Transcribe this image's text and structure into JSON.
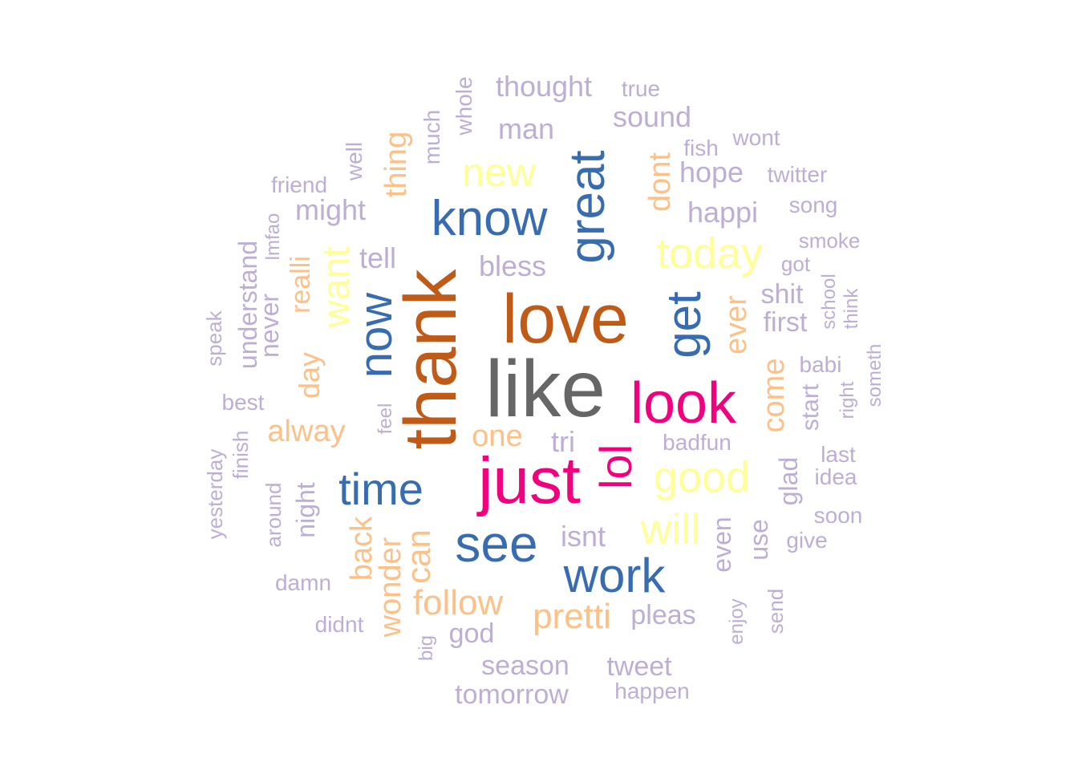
{
  "palette": {
    "tier1": "#666666",
    "tier2": "#bf5b17",
    "tier3": "#f0027f",
    "tier4": "#386cb0",
    "tier5": "#ffff99",
    "tier6": "#fdc086",
    "tier7": "#beaed4"
  },
  "words": [
    {
      "text": "like",
      "color": "tier1"
    },
    {
      "text": "thank",
      "color": "tier2"
    },
    {
      "text": "love",
      "color": "tier2"
    },
    {
      "text": "just",
      "color": "tier3"
    },
    {
      "text": "look",
      "color": "tier3"
    },
    {
      "text": "lol",
      "color": "tier3"
    },
    {
      "text": "know",
      "color": "tier4"
    },
    {
      "text": "great",
      "color": "tier4"
    },
    {
      "text": "get",
      "color": "tier4"
    },
    {
      "text": "now",
      "color": "tier4"
    },
    {
      "text": "time",
      "color": "tier4"
    },
    {
      "text": "see",
      "color": "tier4"
    },
    {
      "text": "work",
      "color": "tier4"
    },
    {
      "text": "new",
      "color": "tier5"
    },
    {
      "text": "today",
      "color": "tier5"
    },
    {
      "text": "want",
      "color": "tier5"
    },
    {
      "text": "good",
      "color": "tier5"
    },
    {
      "text": "will",
      "color": "tier5"
    },
    {
      "text": "thing",
      "color": "tier6"
    },
    {
      "text": "dont",
      "color": "tier6"
    },
    {
      "text": "realli",
      "color": "tier6"
    },
    {
      "text": "day",
      "color": "tier6"
    },
    {
      "text": "alway",
      "color": "tier6"
    },
    {
      "text": "one",
      "color": "tier6"
    },
    {
      "text": "ever",
      "color": "tier6"
    },
    {
      "text": "come",
      "color": "tier6"
    },
    {
      "text": "back",
      "color": "tier6"
    },
    {
      "text": "can",
      "color": "tier6"
    },
    {
      "text": "follow",
      "color": "tier6"
    },
    {
      "text": "wonder",
      "color": "tier6"
    },
    {
      "text": "pretti",
      "color": "tier6"
    },
    {
      "text": "thought",
      "color": "tier7"
    },
    {
      "text": "true",
      "color": "tier7"
    },
    {
      "text": "whole",
      "color": "tier7"
    },
    {
      "text": "much",
      "color": "tier7"
    },
    {
      "text": "man",
      "color": "tier7"
    },
    {
      "text": "sound",
      "color": "tier7"
    },
    {
      "text": "wont",
      "color": "tier7"
    },
    {
      "text": "fish",
      "color": "tier7"
    },
    {
      "text": "well",
      "color": "tier7"
    },
    {
      "text": "friend",
      "color": "tier7"
    },
    {
      "text": "hope",
      "color": "tier7"
    },
    {
      "text": "twitter",
      "color": "tier7"
    },
    {
      "text": "might",
      "color": "tier7"
    },
    {
      "text": "happi",
      "color": "tier7"
    },
    {
      "text": "song",
      "color": "tier7"
    },
    {
      "text": "lmfao",
      "color": "tier7"
    },
    {
      "text": "understand",
      "color": "tier7"
    },
    {
      "text": "smoke",
      "color": "tier7"
    },
    {
      "text": "tell",
      "color": "tier7"
    },
    {
      "text": "bless",
      "color": "tier7"
    },
    {
      "text": "got",
      "color": "tier7"
    },
    {
      "text": "never",
      "color": "tier7"
    },
    {
      "text": "shit",
      "color": "tier7"
    },
    {
      "text": "school",
      "color": "tier7"
    },
    {
      "text": "think",
      "color": "tier7"
    },
    {
      "text": "first",
      "color": "tier7"
    },
    {
      "text": "speak",
      "color": "tier7"
    },
    {
      "text": "someth",
      "color": "tier7"
    },
    {
      "text": "babi",
      "color": "tier7"
    },
    {
      "text": "best",
      "color": "tier7"
    },
    {
      "text": "right",
      "color": "tier7"
    },
    {
      "text": "start",
      "color": "tier7"
    },
    {
      "text": "feel",
      "color": "tier7"
    },
    {
      "text": "finish",
      "color": "tier7"
    },
    {
      "text": "tri",
      "color": "tier7"
    },
    {
      "text": "badfun",
      "color": "tier7"
    },
    {
      "text": "last",
      "color": "tier7"
    },
    {
      "text": "yesterday",
      "color": "tier7"
    },
    {
      "text": "glad",
      "color": "tier7"
    },
    {
      "text": "idea",
      "color": "tier7"
    },
    {
      "text": "around",
      "color": "tier7"
    },
    {
      "text": "night",
      "color": "tier7"
    },
    {
      "text": "soon",
      "color": "tier7"
    },
    {
      "text": "isnt",
      "color": "tier7"
    },
    {
      "text": "even",
      "color": "tier7"
    },
    {
      "text": "use",
      "color": "tier7"
    },
    {
      "text": "give",
      "color": "tier7"
    },
    {
      "text": "damn",
      "color": "tier7"
    },
    {
      "text": "send",
      "color": "tier7"
    },
    {
      "text": "enjoy",
      "color": "tier7"
    },
    {
      "text": "pleas",
      "color": "tier7"
    },
    {
      "text": "didnt",
      "color": "tier7"
    },
    {
      "text": "god",
      "color": "tier7"
    },
    {
      "text": "big",
      "color": "tier7"
    },
    {
      "text": "season",
      "color": "tier7"
    },
    {
      "text": "tweet",
      "color": "tier7"
    },
    {
      "text": "tomorrow",
      "color": "tier7"
    },
    {
      "text": "happen",
      "color": "tier7"
    }
  ]
}
